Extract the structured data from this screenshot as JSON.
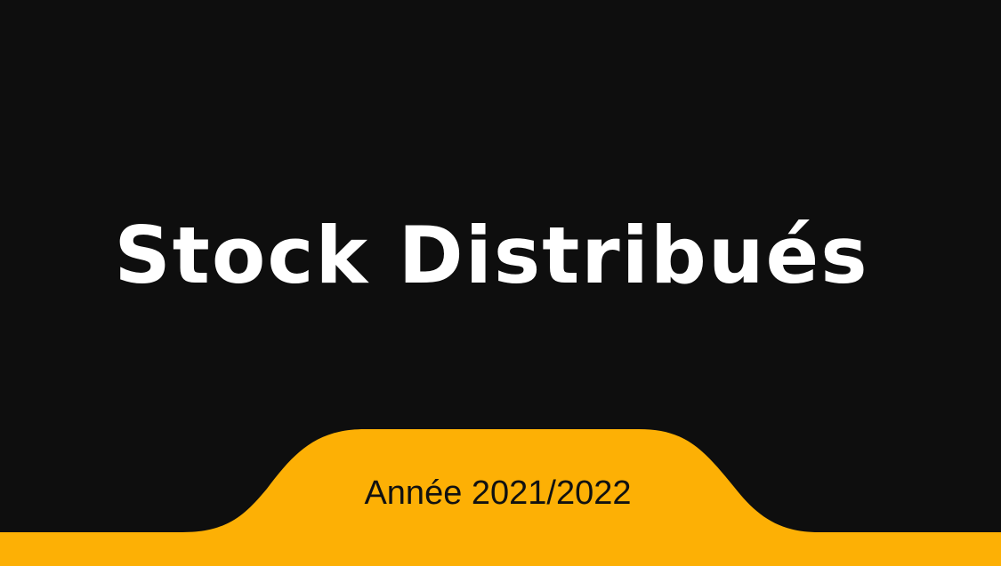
{
  "slide": {
    "title": "Stock Distribués",
    "subtitle": "Année 2021/2022"
  },
  "colors": {
    "background": "#0e0e0e",
    "accent": "#fdb005",
    "title_text": "#ffffff",
    "subtitle_text": "#111111"
  }
}
